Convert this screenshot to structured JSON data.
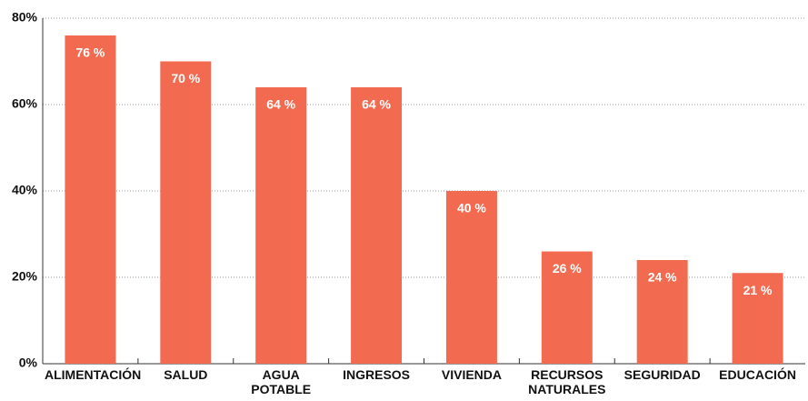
{
  "chart_data": {
    "type": "bar",
    "categories": [
      "ALIMENTACIÓN",
      "SALUD",
      "AGUA POTABLE",
      "INGRESOS",
      "VIVIENDA",
      "RECURSOS NATURALES",
      "SEGURIDAD",
      "EDUCACIÓN"
    ],
    "values": [
      76,
      70,
      64,
      64,
      40,
      26,
      24,
      21
    ],
    "value_labels": [
      "76 %",
      "70 %",
      "64 %",
      "64 %",
      "40 %",
      "26 %",
      "24 %",
      "21 %"
    ],
    "color": "#f26b50",
    "ylim": [
      0,
      80
    ],
    "yticks": [
      {
        "value": 0,
        "label": "0%"
      },
      {
        "value": 20,
        "label": "20%"
      },
      {
        "value": 40,
        "label": "40%"
      },
      {
        "value": 60,
        "label": "60%"
      },
      {
        "value": 80,
        "label": "80%"
      }
    ],
    "grid": true
  }
}
